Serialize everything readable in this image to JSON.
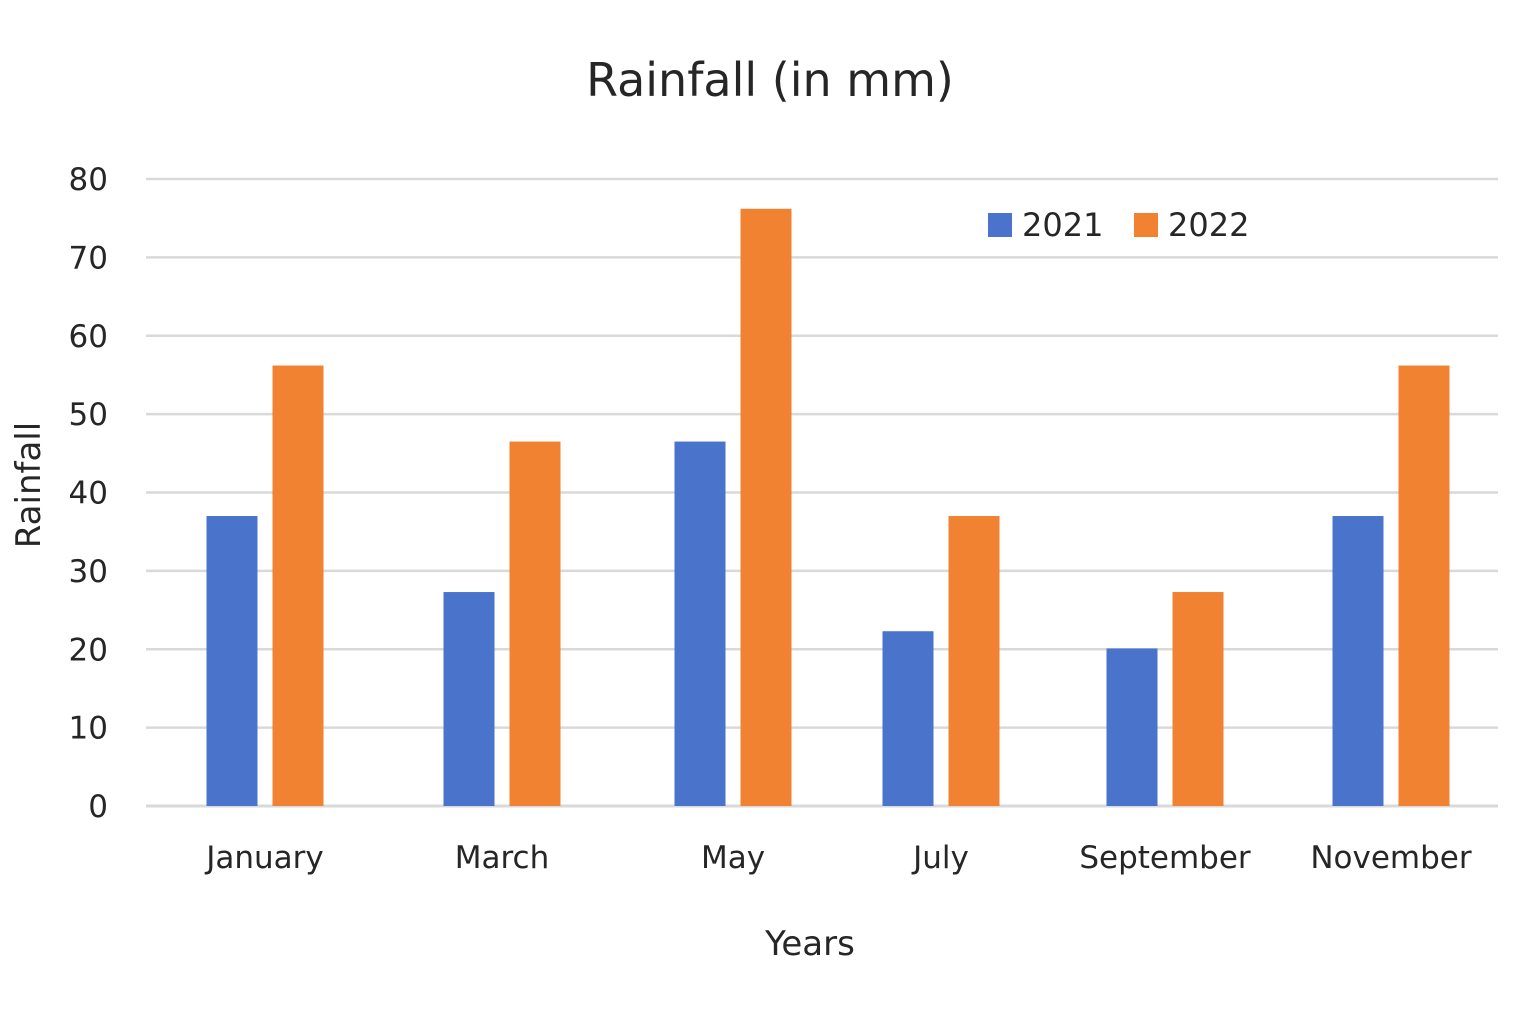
{
  "chart_data": {
    "type": "bar",
    "title": "Rainfall (in mm)",
    "xlabel": "Years",
    "ylabel": "Rainfall",
    "categories": [
      "January",
      "March",
      "May",
      "July",
      "September",
      "November"
    ],
    "series": [
      {
        "name": "2021",
        "color": "#4a74cc",
        "values": [
          37,
          27.3,
          46.5,
          22.3,
          20.1,
          37
        ]
      },
      {
        "name": "2022",
        "color": "#f08232",
        "values": [
          56.2,
          46.5,
          76.2,
          37,
          27.3,
          56.2
        ]
      }
    ],
    "ylim": [
      0,
      80
    ],
    "yticks": [
      0,
      10,
      20,
      30,
      40,
      50,
      60,
      70,
      80
    ],
    "grid": true,
    "legend_position": "top-right"
  }
}
